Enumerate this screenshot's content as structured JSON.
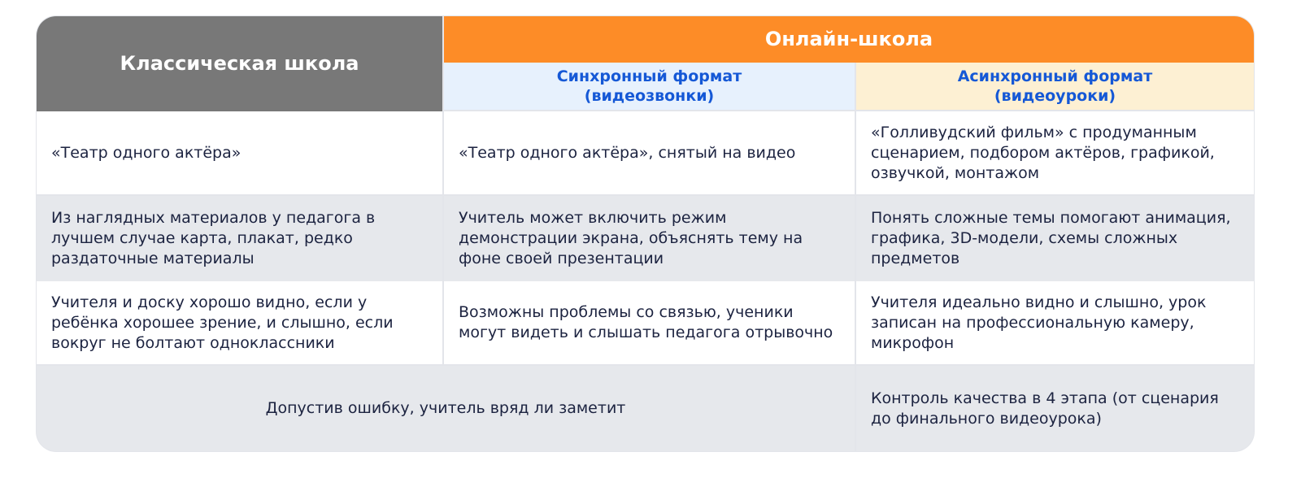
{
  "header": {
    "classic": "Классическая школа",
    "online": "Онлайн-школа",
    "sync_title": "Синхронный формат",
    "sync_sub": "(видеозвонки)",
    "async_title": "Асинхронный формат",
    "async_sub": "(видеоуроки)"
  },
  "rows": [
    [
      "«Театр одного актёра»",
      "«Театр одного актёра», снятый на видео",
      "«Голливудский фильм» с продуманным сценарием, подбором актёров, графикой, озвучкой, монтажом"
    ],
    [
      "Из наглядных материалов у педагога в лучшем случае карта, плакат, редко раздаточные материалы",
      "Учитель может включить режим демонстрации экрана, объяснять тему на фоне своей презентации",
      "Понять сложные темы помогают анимация, графика, 3D-модели, схемы сложных предметов"
    ],
    [
      "Учителя и доску хорошо видно, если у ребёнка хорошее зрение, и слышно, если вокруг не болтают одноклассники",
      "Возможны проблемы со связью, ученики могут видеть и слышать педагога отрывочно",
      "Учителя идеально видно и слышно, урок записан на профессиональную камеру, микрофон"
    ],
    [
      "Допустив ошибку, учитель вряд ли заметит",
      "Контроль качества в 4 этапа (от сценария до финального видеоурока)"
    ]
  ],
  "colors": {
    "classic_header": "#787878",
    "online_header": "#fd8c27",
    "subheader_text": "#1558d6",
    "sync_bg": "#e7f1fd",
    "async_bg": "#fdf0d3"
  }
}
